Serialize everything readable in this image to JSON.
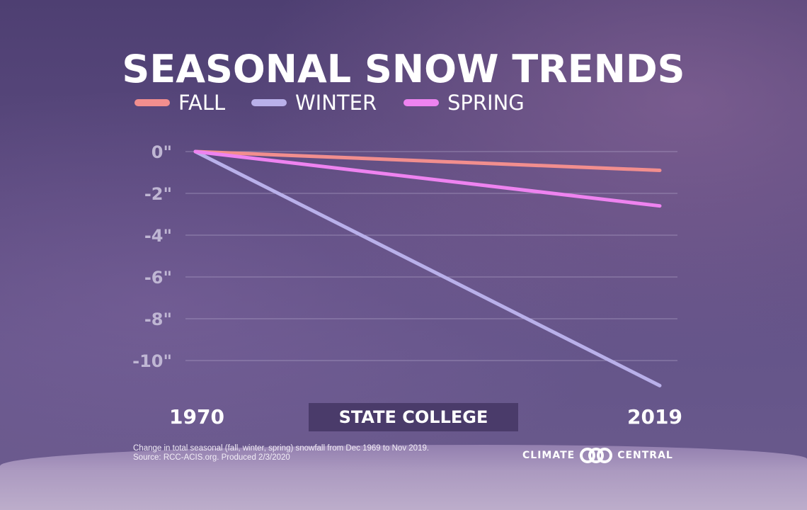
{
  "title": "SEASONAL SNOW TRENDS",
  "legend": [
    {
      "label": "FALL",
      "color": "#f28e8e"
    },
    {
      "label": "WINTER",
      "color": "#b9b0ea"
    },
    {
      "label": "SPRING",
      "color": "#ee83f0"
    }
  ],
  "location": "STATE COLLEGE",
  "footnote": {
    "line1": "Change in total seasonal (fall, winter, spring) snowfall from Dec 1969 to Nov 2019.",
    "line2": "Source: RCC-ACIS.org. Produced 2/3/2020"
  },
  "brand": {
    "left": "CLIMATE",
    "right": "CENTRAL",
    "logo_icon": "climate-central-logo-icon"
  },
  "chart_data": {
    "type": "line",
    "x": [
      1970,
      2019
    ],
    "series": [
      {
        "name": "FALL",
        "color": "#f28e8e",
        "values": [
          0,
          -0.9
        ]
      },
      {
        "name": "WINTER",
        "color": "#b9b0ea",
        "values": [
          0,
          -11.2
        ]
      },
      {
        "name": "SPRING",
        "color": "#ee83f0",
        "values": [
          0,
          -2.6
        ]
      }
    ],
    "yticks": [
      0,
      -2,
      -4,
      -6,
      -8,
      -10
    ],
    "ytick_labels": [
      "0\"",
      "-2\"",
      "-4\"",
      "-6\"",
      "-8\"",
      "-10\""
    ],
    "xtick_labels": [
      "1970",
      "2019"
    ],
    "ylim": [
      -11.2,
      0
    ],
    "grid": true
  }
}
